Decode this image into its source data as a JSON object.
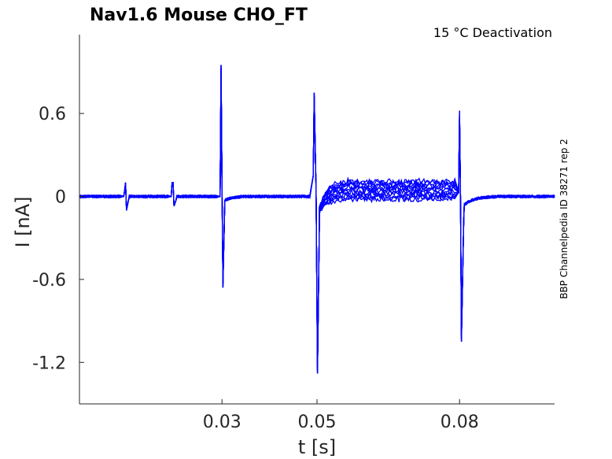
{
  "chart_data": {
    "type": "line",
    "title": "Nav1.6  Mouse  CHO_FT",
    "subtitle": "15 °C  Deactivation",
    "side_label": "BBP Channelpedia ID 38271 rep 2",
    "xlabel": "t [s]",
    "ylabel": "I [nA]",
    "xlim": [
      0.0,
      0.1
    ],
    "ylim": [
      -1.5,
      1.17
    ],
    "xticks": [
      0.03,
      0.05,
      0.08
    ],
    "xtick_labels": [
      "0.03",
      "0.05",
      "0.08"
    ],
    "yticks": [
      0.6,
      0,
      -0.6,
      -1.2
    ],
    "ytick_labels": [
      "0.6",
      "0",
      "-0.6",
      "-1.2"
    ],
    "grid": false,
    "line_color": "#0000ff",
    "trace_count": 12,
    "events": [
      {
        "t": 0.0095,
        "peak": 0.04,
        "trough": -0.1
      },
      {
        "t": 0.0195,
        "peak": 0.1,
        "trough": -0.07
      },
      {
        "t": 0.0298,
        "peak": 0.95,
        "trough": -0.66
      },
      {
        "t": 0.0496,
        "peak": 0.75,
        "trough": -1.28
      },
      {
        "t": 0.08,
        "peak": 0.62,
        "trough": -1.05
      }
    ],
    "plateau_range": [
      -0.02,
      0.11
    ],
    "plateau_t": [
      0.0505,
      0.08
    ]
  }
}
